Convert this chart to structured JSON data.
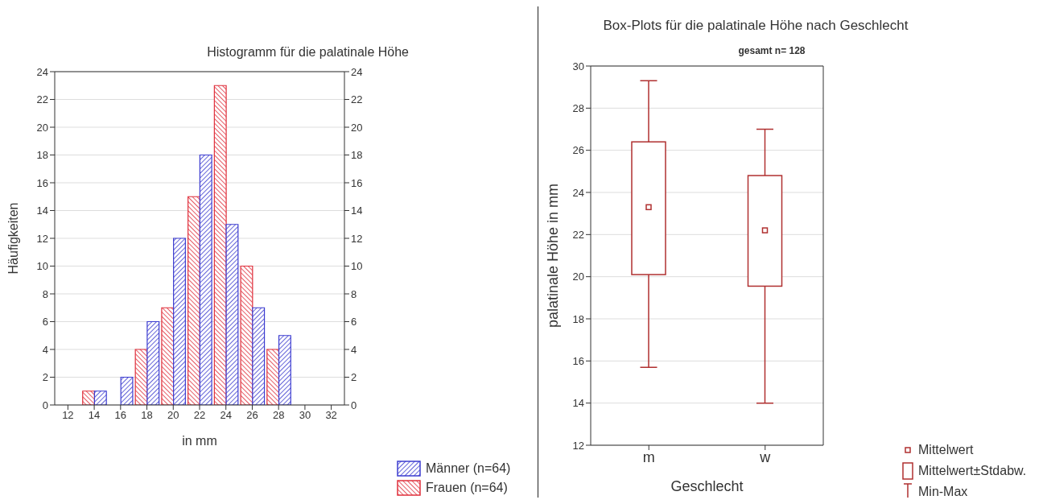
{
  "chart_data": [
    {
      "type": "histogram",
      "title": "Histogramm für die palatinale Höhe",
      "xlabel": "in mm",
      "ylabel": "Häufigkeiten",
      "bins": [
        13,
        15,
        17,
        19,
        21,
        23,
        25,
        27,
        29
      ],
      "series": [
        {
          "name": "Männer (n=64)",
          "color": "#3c3cd0",
          "values": [
            1,
            2,
            6,
            12,
            18,
            13,
            7,
            5
          ]
        },
        {
          "name": "Frauen (n=64)",
          "color": "#e0303c",
          "values": [
            1,
            0,
            4,
            7,
            15,
            23,
            10,
            4
          ]
        }
      ],
      "xlim": [
        11,
        33
      ],
      "xticks": [
        12,
        14,
        16,
        18,
        20,
        22,
        24,
        26,
        28,
        30,
        32
      ],
      "ylim": [
        0,
        24
      ],
      "yticks": [
        0,
        2,
        4,
        6,
        8,
        10,
        12,
        14,
        16,
        18,
        20,
        22,
        24
      ],
      "y2lim": [
        0,
        24
      ],
      "y2ticks": [
        0,
        2,
        4,
        6,
        8,
        10,
        12,
        14,
        16,
        18,
        20,
        22,
        24
      ],
      "grid": "y",
      "legend": "bottom right"
    },
    {
      "type": "box",
      "title": "Box-Plots für die palatinale Höhe nach Geschlecht",
      "subtitle": "gesamt n= 128",
      "xlabel": "Geschlecht",
      "ylabel": "palatinale Höhe in mm",
      "categories": [
        "m",
        "w"
      ],
      "color": "#b03030",
      "boxes": [
        {
          "low": 15.7,
          "q1": 20.1,
          "mean": 23.3,
          "q3": 26.4,
          "high": 29.3
        },
        {
          "low": 14,
          "q1": 19.55,
          "mean": 22.2,
          "q3": 24.8,
          "high": 27
        }
      ],
      "ylim": [
        12,
        30
      ],
      "yticks": [
        12,
        14,
        16,
        18,
        20,
        22,
        24,
        26,
        28,
        30
      ],
      "grid": "y",
      "annotations": [
        "Mittelwert",
        "Mittelwert±Stdabw.",
        "Min-Max"
      ]
    }
  ]
}
